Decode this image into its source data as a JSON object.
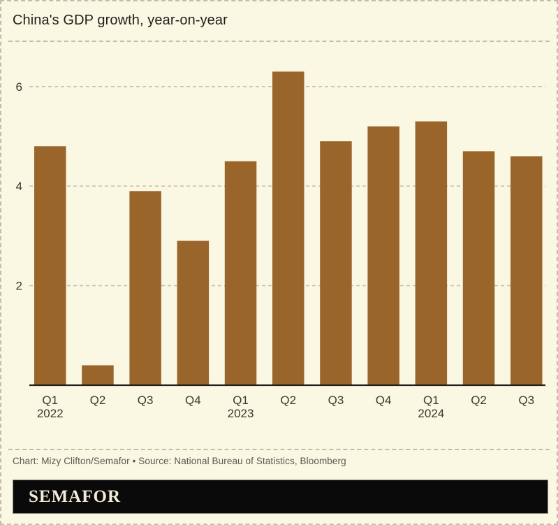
{
  "page": {
    "title": "China's GDP growth, year-on-year",
    "credit": "Chart: Mizy Clifton/Semafor • Source: National Bureau of Statistics, Bloomberg",
    "brand": "SEMAFOR"
  },
  "colors": {
    "background": "#FAF7E3",
    "border_dash": "#C2BEAC",
    "title_text": "#1F1F1C",
    "bar": "#9A652B",
    "grid": "#C7C3B0",
    "axis": "#23211B",
    "tick_text": "#3A392F",
    "credit_text": "#59584E",
    "brand_bg": "#0A0A0A",
    "brand_text": "#F2ECD7"
  },
  "chart_data": {
    "type": "bar",
    "title": "China's GDP growth, year-on-year",
    "categories": [
      "Q1",
      "Q2",
      "Q3",
      "Q4",
      "Q1",
      "Q2",
      "Q3",
      "Q4",
      "Q1",
      "Q2",
      "Q3"
    ],
    "year_labels": [
      {
        "index": 0,
        "label": "2022"
      },
      {
        "index": 4,
        "label": "2023"
      },
      {
        "index": 8,
        "label": "2024"
      }
    ],
    "values": [
      4.8,
      0.4,
      3.9,
      2.9,
      4.5,
      6.3,
      4.9,
      5.2,
      5.3,
      4.7,
      4.6
    ],
    "yticks": [
      2,
      4,
      6
    ],
    "ylim": [
      0,
      6.7
    ],
    "xlabel": "",
    "ylabel": "",
    "grid": "horizontal-dashed",
    "legend": "none"
  }
}
